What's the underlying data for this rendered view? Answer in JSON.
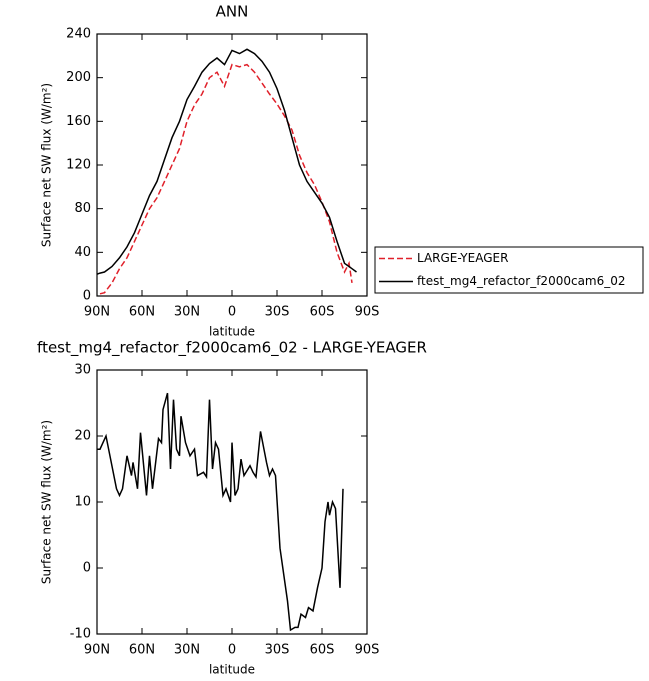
{
  "chart_data": [
    {
      "type": "line",
      "title": "ANN",
      "xlabel": "latitude",
      "ylabel": "Surface net SW flux (W/m²)",
      "x": [
        90,
        88,
        85,
        80,
        75,
        70,
        65,
        60,
        55,
        50,
        45,
        40,
        35,
        30,
        25,
        20,
        15,
        10,
        5,
        0,
        -5,
        -10,
        -15,
        -20,
        -25,
        -30,
        -35,
        -40,
        -45,
        -50,
        -55,
        -60,
        -65,
        -70,
        -75,
        -78,
        -80,
        -83
      ],
      "series": [
        {
          "name": "LARGE-YEAGER",
          "color": "#e0202a",
          "dash": true,
          "values": [
            null,
            2,
            3,
            12,
            25,
            35,
            50,
            65,
            80,
            90,
            105,
            120,
            135,
            160,
            175,
            185,
            200,
            205,
            192,
            212,
            210,
            212,
            205,
            195,
            185,
            176,
            165,
            152,
            129,
            113,
            102,
            86,
            68,
            40,
            22,
            30,
            12,
            null
          ]
        },
        {
          "name": "ftest_mg4_refactor_f2000cam6_02",
          "color": "#000000",
          "dash": false,
          "values": [
            20,
            21,
            22,
            27,
            35,
            45,
            58,
            75,
            92,
            105,
            125,
            145,
            160,
            180,
            192,
            205,
            213,
            218,
            212,
            225,
            222,
            226,
            222,
            215,
            205,
            190,
            170,
            145,
            120,
            105,
            95,
            85,
            72,
            50,
            30,
            27,
            25,
            22
          ]
        }
      ],
      "xlim": [
        90,
        -90
      ],
      "xticks": [
        {
          "value": 90,
          "label": "90N"
        },
        {
          "value": 60,
          "label": "60N"
        },
        {
          "value": 30,
          "label": "30N"
        },
        0,
        {
          "value": -30,
          "label": "30S"
        },
        {
          "value": -60,
          "label": "60S"
        },
        {
          "value": -90,
          "label": "90S"
        }
      ],
      "ylim": [
        0,
        240
      ],
      "yticks": [
        0,
        40,
        80,
        120,
        160,
        200,
        240
      ],
      "legend": "outside-right"
    },
    {
      "type": "line",
      "title": "ftest_mg4_refactor_f2000cam6_02 - LARGE-YEAGER",
      "xlabel": "latitude",
      "ylabel": "Surface net SW flux (W/m²)",
      "x": [
        90,
        88,
        84,
        77,
        75,
        73,
        70,
        67,
        66,
        63,
        61,
        57,
        55,
        53,
        49,
        47,
        46,
        43,
        41,
        39,
        37,
        35,
        34,
        31,
        28,
        25,
        23,
        19,
        17,
        15,
        13,
        11,
        9,
        6,
        4,
        1,
        0,
        -2,
        -4,
        -6,
        -8,
        -12,
        -14,
        -16,
        -19,
        -23,
        -25,
        -27,
        -29,
        -32,
        -37,
        -39,
        -42,
        -44,
        -46,
        -49,
        -51,
        -54,
        -57,
        -60,
        -62,
        -64,
        -65,
        -67,
        -69,
        -72,
        -74
      ],
      "series": [
        {
          "color": "#000000",
          "dash": false,
          "values": [
            18,
            18,
            20,
            12,
            11,
            12,
            17,
            14,
            16,
            12,
            20.5,
            11,
            17,
            12,
            19.6,
            19,
            24,
            26.5,
            15,
            25.5,
            18,
            17,
            23,
            19,
            17,
            18,
            14,
            14.5,
            13.8,
            25.5,
            15,
            19,
            18,
            11,
            12,
            10,
            19,
            11,
            12,
            16.5,
            14,
            15.5,
            14.5,
            13.8,
            20.7,
            16,
            14,
            15,
            14,
            3,
            -5,
            -9.4,
            -9,
            -9,
            -7,
            -7.5,
            -6,
            -6.5,
            -3,
            0,
            7,
            10,
            8,
            10,
            9,
            -3,
            12
          ]
        }
      ],
      "xlim": [
        90,
        -90
      ],
      "xticks": [
        {
          "value": 90,
          "label": "90N"
        },
        {
          "value": 60,
          "label": "60N"
        },
        {
          "value": 30,
          "label": "30N"
        },
        0,
        {
          "value": -30,
          "label": "30S"
        },
        {
          "value": -60,
          "label": "60S"
        },
        {
          "value": -90,
          "label": "90S"
        }
      ],
      "ylim": [
        -10,
        30
      ],
      "yticks": [
        -10,
        0,
        10,
        20,
        30
      ]
    }
  ]
}
